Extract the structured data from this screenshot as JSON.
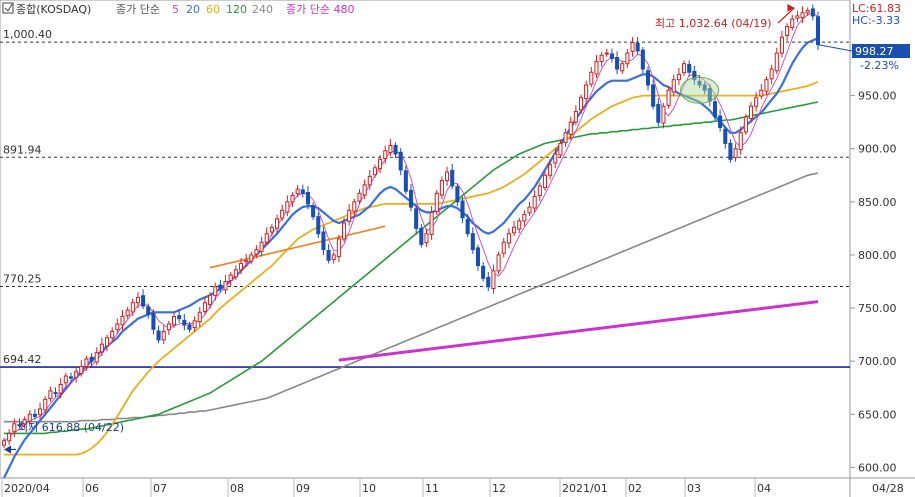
{
  "header": {
    "checkbox_icon": "checkbox-icon",
    "main_label": "종합(KOSDAQ)",
    "ma_prefix": "종가 단순",
    "ma_periods": [
      {
        "label": "5",
        "color": "#cc44cc"
      },
      {
        "label": "20",
        "color": "#3a6fd8"
      },
      {
        "label": "60",
        "color": "#e8b020"
      },
      {
        "label": "120",
        "color": "#2a9a3a"
      },
      {
        "label": "240",
        "color": "#888888"
      }
    ],
    "ma480_text": "종가 단순 480",
    "ma480_color": "#cc33cc"
  },
  "corner": {
    "lc": "LC:61.83",
    "hc": "HC:-3.33"
  },
  "price_badge": {
    "value": "998.27",
    "change": "-2.23%"
  },
  "annotations": {
    "high": {
      "text": "최고 1,032.64 (04/19)",
      "date": "2021-04-19",
      "value": 1032.64
    },
    "low": {
      "text": "최저 616.88 (04/22)",
      "date": "2020-04-22",
      "value": 616.88
    }
  },
  "chart_data": {
    "type": "candlestick",
    "y_axis": {
      "min": 590,
      "max": 1040,
      "ticks": [
        600,
        650,
        700,
        750,
        800,
        850,
        900,
        950
      ],
      "tick_labels": [
        "600.00",
        "650.00",
        "700.00",
        "750.00",
        "800.00",
        "850.00",
        "900.00",
        "950.00"
      ]
    },
    "x_axis_labels": [
      "2020/04",
      "06",
      "07",
      "08",
      "09",
      "10",
      "11",
      "12",
      "2021/01",
      "02",
      "03",
      "04",
      "04/28"
    ],
    "reference_lines": [
      {
        "label": "1,000.40",
        "value": 1000.4,
        "style": "dashed"
      },
      {
        "label": "891.94",
        "value": 891.94,
        "style": "dashed"
      },
      {
        "label": "770.25",
        "value": 770.25,
        "style": "dashed"
      },
      {
        "label": "694.42",
        "value": 694.42,
        "style": "solid"
      }
    ],
    "closes": [
      625,
      632,
      641,
      640,
      645,
      650,
      648,
      655,
      664,
      672,
      670,
      678,
      686,
      684,
      690,
      695,
      702,
      700,
      708,
      716,
      722,
      728,
      735,
      742,
      748,
      755,
      760,
      752,
      744,
      730,
      720,
      728,
      735,
      742,
      740,
      734,
      730,
      738,
      746,
      755,
      762,
      770,
      768,
      775,
      781,
      786,
      792,
      795,
      800,
      805,
      812,
      820,
      826,
      834,
      842,
      850,
      856,
      862,
      858,
      848,
      836,
      820,
      805,
      795,
      800,
      815,
      830,
      842,
      850,
      858,
      866,
      874,
      882,
      890,
      898,
      903,
      895,
      880,
      860,
      845,
      825,
      810,
      820,
      840,
      858,
      870,
      878,
      865,
      850,
      835,
      820,
      805,
      790,
      778,
      770,
      785,
      800,
      812,
      820,
      826,
      832,
      838,
      845,
      855,
      865,
      875,
      885,
      895,
      905,
      915,
      925,
      935,
      948,
      960,
      972,
      982,
      988,
      990,
      985,
      975,
      980,
      990,
      1000,
      992,
      975,
      960,
      940,
      925,
      940,
      955,
      965,
      970,
      980,
      972,
      965,
      960,
      955,
      945,
      930,
      920,
      905,
      890,
      900,
      915,
      930,
      940,
      948,
      955,
      965,
      975,
      990,
      1005,
      1015,
      1022,
      1025,
      1028,
      1030,
      1025,
      998
    ],
    "ma5": [
      625,
      628,
      633,
      636,
      640,
      644,
      646,
      648,
      653,
      660,
      666,
      671,
      676,
      680,
      684,
      688,
      693,
      696,
      701,
      707,
      713,
      719,
      726,
      733,
      739,
      746,
      752,
      754,
      752,
      746,
      738,
      734,
      731,
      733,
      735,
      736,
      735,
      736,
      738,
      744,
      751,
      759,
      765,
      770,
      775,
      780,
      785,
      790,
      795,
      800,
      806,
      812,
      819,
      827,
      835,
      843,
      850,
      856,
      858,
      857,
      852,
      842,
      829,
      815,
      804,
      804,
      810,
      822,
      835,
      848,
      858,
      866,
      874,
      882,
      890,
      897,
      898,
      895,
      886,
      872,
      852,
      835,
      823,
      825,
      833,
      847,
      861,
      868,
      867,
      860,
      848,
      833,
      819,
      806,
      792,
      783,
      780,
      786,
      797,
      808,
      818,
      826,
      833,
      840,
      848,
      857,
      867,
      877,
      887,
      897,
      907,
      917,
      928,
      940,
      952,
      964,
      975,
      983,
      986,
      985,
      982,
      982,
      984,
      989,
      987,
      980,
      967,
      951,
      936,
      931,
      938,
      949,
      960,
      969,
      970,
      968,
      964,
      959,
      951,
      942,
      931,
      918,
      906,
      902,
      906,
      914,
      926,
      938,
      948,
      957,
      966,
      978,
      991,
      1004,
      1016,
      1022,
      1026,
      1028,
      1024
    ],
    "ma20": [
      590,
      600,
      610,
      618,
      626,
      632,
      638,
      644,
      650,
      656,
      662,
      668,
      674,
      680,
      685,
      690,
      696,
      700,
      705,
      710,
      714,
      718,
      722,
      728,
      732,
      736,
      740,
      742,
      744,
      746,
      746,
      746,
      746,
      746,
      748,
      750,
      752,
      755,
      758,
      760,
      762,
      765,
      768,
      772,
      776,
      780,
      785,
      790,
      795,
      800,
      805,
      810,
      815,
      820,
      826,
      832,
      838,
      842,
      845,
      846,
      846,
      844,
      840,
      836,
      832,
      830,
      832,
      834,
      836,
      838,
      842,
      846,
      852,
      858,
      862,
      864,
      862,
      858,
      854,
      850,
      846,
      842,
      840,
      840,
      842,
      844,
      846,
      846,
      844,
      840,
      836,
      830,
      826,
      822,
      820,
      822,
      826,
      830,
      836,
      842,
      848,
      852,
      858,
      864,
      872,
      880,
      888,
      896,
      904,
      912,
      920,
      928,
      935,
      942,
      948,
      954,
      958,
      962,
      964,
      964,
      964,
      964,
      966,
      968,
      970,
      970,
      968,
      964,
      960,
      958,
      955,
      952,
      950,
      948,
      946,
      944,
      940,
      936,
      930,
      926,
      920,
      915,
      915,
      918,
      922,
      926,
      930,
      934,
      940,
      946,
      952,
      960,
      970,
      980,
      988,
      995,
      1000,
      1002,
      1004
    ],
    "ma60": [
      612,
      612,
      612,
      612,
      612,
      612,
      612,
      612,
      612,
      612,
      612,
      612,
      612,
      612,
      612,
      613,
      615,
      618,
      622,
      627,
      633,
      640,
      648,
      656,
      664,
      672,
      678,
      684,
      690,
      695,
      700,
      704,
      708,
      712,
      716,
      720,
      724,
      728,
      732,
      736,
      740,
      745,
      750,
      754,
      758,
      762,
      766,
      770,
      774,
      778,
      782,
      786,
      790,
      795,
      800,
      805,
      810,
      815,
      818,
      821,
      824,
      826,
      828,
      830,
      832,
      834,
      836,
      838,
      840,
      842,
      844,
      845,
      846,
      847,
      848,
      848,
      848,
      848,
      848,
      848,
      848,
      848,
      848,
      848,
      848,
      849,
      850,
      851,
      852,
      853,
      854,
      855,
      856,
      857,
      858,
      860,
      862,
      864,
      867,
      870,
      873,
      876,
      880,
      884,
      888,
      892,
      896,
      900,
      904,
      908,
      912,
      916,
      920,
      924,
      928,
      931,
      934,
      937,
      940,
      942,
      944,
      946,
      948,
      949,
      950,
      950,
      950,
      950,
      950,
      950,
      950,
      950,
      950,
      950,
      950,
      950,
      950,
      950,
      950,
      950,
      950,
      950,
      950,
      950,
      950,
      950,
      950,
      950,
      951,
      952,
      953,
      954,
      955,
      956,
      957,
      958,
      959,
      961,
      963
    ],
    "ma120": [
      632,
      632,
      632,
      632,
      632,
      632,
      632,
      632,
      632,
      633,
      633,
      634,
      634,
      635,
      635,
      636,
      636,
      637,
      638,
      639,
      640,
      641,
      642,
      643,
      644,
      645,
      646,
      647,
      648,
      649,
      650,
      652,
      654,
      656,
      658,
      660,
      662,
      664,
      666,
      668,
      670,
      673,
      676,
      679,
      682,
      685,
      688,
      691,
      694,
      697,
      700,
      704,
      708,
      712,
      716,
      720,
      724,
      728,
      732,
      736,
      740,
      744,
      748,
      752,
      756,
      760,
      764,
      768,
      772,
      776,
      780,
      784,
      788,
      792,
      796,
      800,
      804,
      808,
      812,
      816,
      820,
      824,
      828,
      832,
      836,
      840,
      844,
      848,
      852,
      856,
      860,
      864,
      868,
      872,
      876,
      880,
      883,
      886,
      889,
      892,
      895,
      897,
      899,
      901,
      903,
      905,
      906,
      907,
      908,
      909,
      910,
      911,
      912,
      913,
      914,
      914,
      915,
      915,
      916,
      916,
      917,
      917,
      918,
      918,
      919,
      919,
      920,
      920,
      921,
      921,
      922,
      922,
      923,
      923,
      924,
      924,
      925,
      925,
      926,
      926,
      927,
      927,
      928,
      929,
      930,
      931,
      932,
      933,
      934,
      935,
      936,
      937,
      938,
      939,
      940,
      941,
      942,
      943,
      944
    ],
    "ma240": [
      643,
      643,
      643,
      643,
      643,
      643,
      643,
      643,
      643,
      643,
      643,
      643,
      643,
      643,
      643,
      644,
      644,
      644,
      644,
      645,
      645,
      645,
      646,
      646,
      646,
      647,
      647,
      647,
      648,
      648,
      649,
      649,
      650,
      650,
      651,
      651,
      652,
      652,
      653,
      653,
      654,
      655,
      656,
      657,
      658,
      659,
      660,
      661,
      662,
      663,
      664,
      665,
      667,
      669,
      671,
      673,
      675,
      677,
      679,
      681,
      683,
      685,
      687,
      689,
      691,
      693,
      695,
      697,
      699,
      701,
      703,
      705,
      707,
      709,
      711,
      713,
      715,
      717,
      719,
      721,
      723,
      725,
      727,
      729,
      731,
      733,
      735,
      737,
      739,
      741,
      743,
      745,
      747,
      749,
      751,
      753,
      755,
      757,
      759,
      761,
      763,
      765,
      767,
      769,
      771,
      773,
      775,
      777,
      779,
      781,
      783,
      785,
      787,
      789,
      791,
      793,
      795,
      797,
      799,
      801,
      803,
      805,
      807,
      809,
      811,
      813,
      815,
      817,
      819,
      821,
      823,
      825,
      827,
      829,
      831,
      833,
      835,
      837,
      839,
      841,
      843,
      845,
      847,
      849,
      851,
      853,
      855,
      857,
      859,
      861,
      863,
      865,
      867,
      869,
      871,
      873,
      875,
      876,
      877
    ],
    "ma480_segment": {
      "start_index": 65,
      "start_value": 701,
      "end_value": 756
    },
    "trendline": {
      "start_index": 40,
      "start_value": 788,
      "end_index": 74,
      "end_value": 827,
      "color": "#f08020"
    },
    "highlight_ellipse": {
      "center_index": 135,
      "center_value": 955
    }
  }
}
